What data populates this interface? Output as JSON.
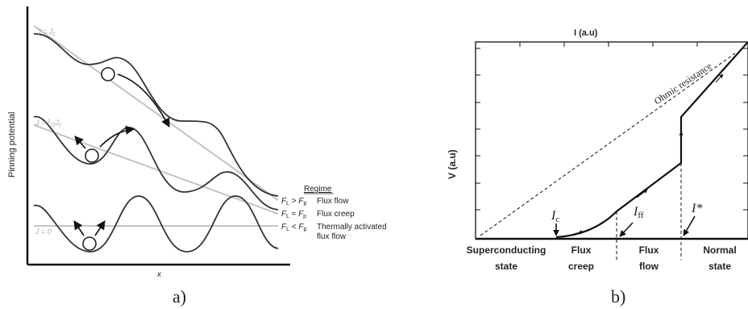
{
  "panel_a": {
    "ylabel": "Pinning potential",
    "xlabel": "x",
    "curve_labels": {
      "jc": "J = J",
      "jc_sub": "c",
      "half": "J = ",
      "half_num": "1",
      "half_den": "2",
      "half_j": "J",
      "half_sub": "c",
      "zero": "J = 0"
    },
    "regime": {
      "heading": "Regime",
      "rows": [
        {
          "cond": "F",
          "sub1": "L",
          "op": " > ",
          "f2": "F",
          "sub2": "p",
          "name": "Flux flow"
        },
        {
          "cond": "F",
          "sub1": "L",
          "op": " ≈ ",
          "f2": "F",
          "sub2": "p",
          "name": "Flux creep"
        },
        {
          "cond": "F",
          "sub1": "L",
          "op": " < ",
          "f2": "F",
          "sub2": "p",
          "name": "Thermally activated",
          "name2": "flux flow"
        }
      ]
    },
    "caption": "a)"
  },
  "panel_b": {
    "top_label": "I (a.u)",
    "ylabel": "V (a.u)",
    "diag_label": "Ohmic resistance",
    "ic": "I",
    "ic_sub": "c",
    "iff": "I",
    "iff_sub": "ff",
    "istar": "I*",
    "states": [
      {
        "l1": "Superconducting",
        "l2": "state"
      },
      {
        "l1": "Flux",
        "l2": "creep"
      },
      {
        "l1": "Flux",
        "l2": "flow"
      },
      {
        "l1": "Normal",
        "l2": "state"
      }
    ],
    "caption": "b)"
  }
}
